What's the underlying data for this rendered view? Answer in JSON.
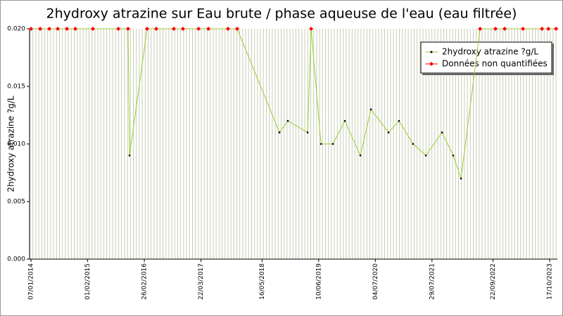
{
  "chart_data": {
    "type": "line",
    "title": "2hydroxy atrazine sur Eau brute / phase aqueuse de l'eau (eau filtrée)",
    "y_label": "2hydroxy atrazine ?g/L",
    "x": [
      "2014-01-07",
      "2014-03-11",
      "2014-05-13",
      "2014-07-10",
      "2014-09-11",
      "2014-11-08",
      "2015-03-09",
      "2015-08-31",
      "2015-11-06",
      "2015-11-16",
      "2016-03-16",
      "2016-05-18",
      "2016-09-16",
      "2016-11-18",
      "2017-03-05",
      "2017-05-12",
      "2017-09-24",
      "2017-11-26",
      "2018-09-13",
      "2018-11-10",
      "2019-03-26",
      "2019-04-19",
      "2019-06-26",
      "2019-09-16",
      "2019-12-07",
      "2020-03-23",
      "2020-06-04",
      "2020-10-03",
      "2020-12-14",
      "2021-03-21",
      "2021-06-17",
      "2021-10-06",
      "2021-12-22",
      "2022-02-14",
      "2022-06-25",
      "2022-10-09",
      "2022-12-11",
      "2023-04-16",
      "2023-08-25",
      "2023-10-08",
      "2023-11-30"
    ],
    "series": [
      {
        "name": "2hydroxy atrazine ?g/L",
        "color": "#000000",
        "values": [
          null,
          null,
          null,
          null,
          null,
          null,
          null,
          null,
          null,
          0.009,
          null,
          null,
          null,
          null,
          null,
          null,
          null,
          null,
          0.011,
          0.012,
          0.011,
          null,
          0.01,
          0.01,
          0.012,
          0.009,
          0.013,
          0.011,
          0.012,
          0.01,
          0.009,
          0.011,
          0.009,
          0.007,
          null,
          null,
          null,
          null,
          null,
          null,
          null
        ]
      },
      {
        "name": "Données non quantifiées",
        "color": "#ff0000",
        "values": [
          0.02,
          0.02,
          0.02,
          0.02,
          0.02,
          0.02,
          0.02,
          0.02,
          0.02,
          null,
          0.02,
          0.02,
          0.02,
          0.02,
          0.02,
          0.02,
          0.02,
          0.02,
          null,
          null,
          null,
          0.02,
          null,
          null,
          null,
          null,
          null,
          null,
          null,
          null,
          null,
          null,
          null,
          null,
          0.02,
          0.02,
          0.02,
          0.02,
          0.02,
          0.02,
          0.02
        ]
      }
    ],
    "line_color": "#99cc33",
    "xlim": [
      "2013-12-28",
      "2023-12-09"
    ],
    "xticks": [
      {
        "value": "2014-01-07",
        "label": "07/01/2014"
      },
      {
        "value": "2015-02-01",
        "label": "01/02/2015"
      },
      {
        "value": "2016-02-26",
        "label": "26/02/2016"
      },
      {
        "value": "2017-03-22",
        "label": "22/03/2017"
      },
      {
        "value": "2018-05-16",
        "label": "16/05/2018"
      },
      {
        "value": "2019-06-10",
        "label": "10/06/2019"
      },
      {
        "value": "2020-07-04",
        "label": "04/07/2020"
      },
      {
        "value": "2021-07-29",
        "label": "29/07/2021"
      },
      {
        "value": "2022-09-22",
        "label": "22/09/2022"
      },
      {
        "value": "2023-10-17",
        "label": "17/10/2023"
      }
    ],
    "ylim": [
      0,
      0.02
    ],
    "yticks": [
      {
        "value": 0,
        "label": "0.000"
      },
      {
        "value": 0.005,
        "label": "0.005"
      },
      {
        "value": 0.01,
        "label": "0.010"
      },
      {
        "value": 0.015,
        "label": "0.015"
      },
      {
        "value": 0.02,
        "label": "0.020"
      }
    ],
    "legend": "top-right"
  }
}
